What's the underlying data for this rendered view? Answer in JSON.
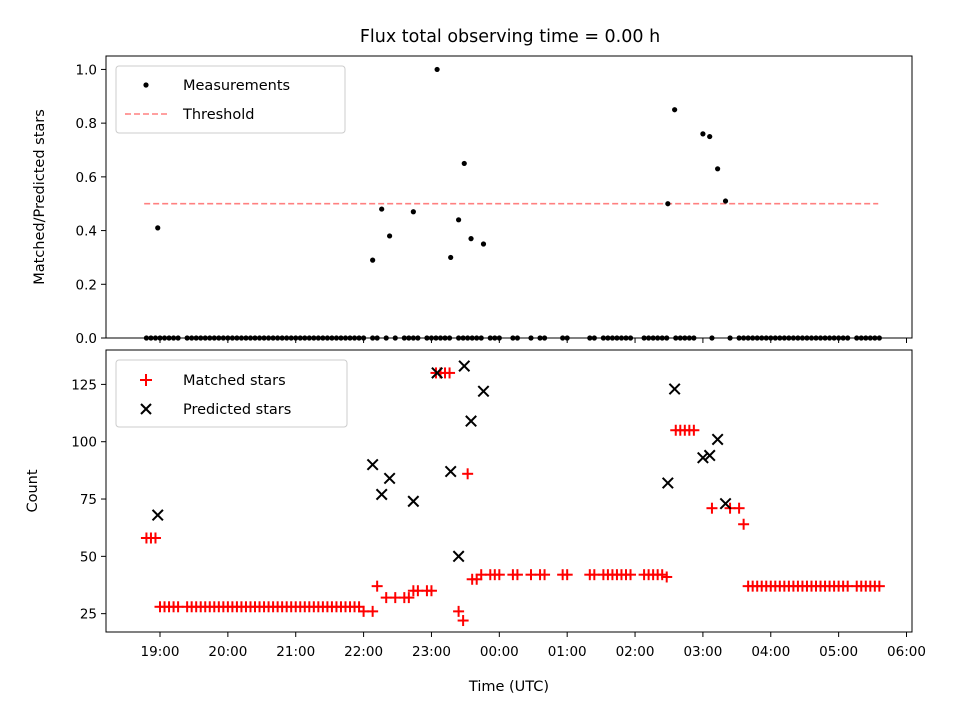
{
  "chart_data": [
    {
      "type": "scatter",
      "title": "Flux total observing time = 0.00 h",
      "xlabel": "",
      "ylabel": "Matched/Predicted stars",
      "ylim": [
        0,
        1.05
      ],
      "yticks": [
        "0.0",
        "0.2",
        "0.4",
        "0.6",
        "0.8",
        "1.0"
      ],
      "legend_position": "upper-left",
      "colors": {
        "measurements": "#000000",
        "threshold": "#ff8080"
      },
      "series": [
        {
          "name": "Measurements",
          "marker": "dot",
          "x": [
            "18:48",
            "18:52",
            "18:56",
            "19:00",
            "19:04",
            "19:08",
            "19:12",
            "19:16",
            "19:24",
            "19:28",
            "19:32",
            "19:36",
            "19:40",
            "19:44",
            "19:48",
            "19:52",
            "19:56",
            "20:00",
            "20:04",
            "20:08",
            "20:12",
            "20:16",
            "20:20",
            "20:24",
            "20:28",
            "20:32",
            "20:36",
            "20:40",
            "20:44",
            "20:48",
            "20:52",
            "20:56",
            "21:00",
            "21:04",
            "21:08",
            "21:12",
            "21:16",
            "21:20",
            "21:24",
            "21:28",
            "21:32",
            "21:36",
            "21:40",
            "21:44",
            "21:48",
            "21:52",
            "21:56",
            "22:00",
            "22:08",
            "22:12",
            "22:20",
            "22:28",
            "22:36",
            "22:40",
            "22:44",
            "22:48",
            "22:56",
            "23:00",
            "23:04",
            "23:08",
            "23:12",
            "23:16",
            "23:24",
            "23:28",
            "23:32",
            "23:36",
            "23:40",
            "23:44",
            "23:52",
            "23:56",
            "00:00",
            "00:12",
            "00:16",
            "00:28",
            "00:36",
            "00:40",
            "00:56",
            "01:00",
            "01:20",
            "01:24",
            "01:32",
            "01:36",
            "01:40",
            "01:44",
            "01:48",
            "01:52",
            "01:56",
            "02:08",
            "02:12",
            "02:16",
            "02:20",
            "02:24",
            "02:28",
            "02:36",
            "02:40",
            "02:44",
            "02:48",
            "02:52",
            "03:08",
            "03:24",
            "03:32",
            "03:36",
            "03:40",
            "03:44",
            "03:48",
            "03:52",
            "03:56",
            "04:00",
            "04:04",
            "04:08",
            "04:12",
            "04:16",
            "04:20",
            "04:24",
            "04:28",
            "04:32",
            "04:36",
            "04:40",
            "04:44",
            "04:48",
            "04:52",
            "04:56",
            "05:00",
            "05:04",
            "05:08",
            "05:16",
            "05:20",
            "05:24",
            "05:28",
            "05:32",
            "05:36",
            "18:58",
            "22:08",
            "22:16",
            "22:23",
            "22:44",
            "23:05",
            "23:17",
            "23:24",
            "23:29",
            "23:35",
            "23:46",
            "02:29",
            "02:35",
            "03:00",
            "03:06",
            "03:13",
            "03:20"
          ],
          "y": [
            0,
            0,
            0,
            0,
            0,
            0,
            0,
            0,
            0,
            0,
            0,
            0,
            0,
            0,
            0,
            0,
            0,
            0,
            0,
            0,
            0,
            0,
            0,
            0,
            0,
            0,
            0,
            0,
            0,
            0,
            0,
            0,
            0,
            0,
            0,
            0,
            0,
            0,
            0,
            0,
            0,
            0,
            0,
            0,
            0,
            0,
            0,
            0,
            0,
            0,
            0,
            0,
            0,
            0,
            0,
            0,
            0,
            0,
            0,
            0,
            0,
            0,
            0,
            0,
            0,
            0,
            0,
            0,
            0,
            0,
            0,
            0,
            0,
            0,
            0,
            0,
            0,
            0,
            0,
            0,
            0,
            0,
            0,
            0,
            0,
            0,
            0,
            0,
            0,
            0,
            0,
            0,
            0,
            0,
            0,
            0,
            0,
            0,
            0,
            0,
            0,
            0,
            0,
            0,
            0,
            0,
            0,
            0,
            0,
            0,
            0,
            0,
            0,
            0,
            0,
            0,
            0,
            0,
            0,
            0,
            0,
            0,
            0,
            0,
            0,
            0,
            0,
            0,
            0,
            0,
            0,
            0.41,
            0.29,
            0.48,
            0.38,
            0.47,
            1.0,
            0.3,
            0.44,
            0.65,
            0.37,
            0.35,
            0.5,
            0.85,
            0.76,
            0.75,
            0.63,
            0.51
          ]
        },
        {
          "name": "Threshold",
          "style": "dashed",
          "x": [
            "18:46",
            "05:35"
          ],
          "y": [
            0.5,
            0.5
          ]
        }
      ]
    },
    {
      "type": "scatter",
      "title": "",
      "xlabel": "Time (UTC)",
      "ylabel": "Count",
      "ylim": [
        17,
        140
      ],
      "yticks": [
        "25",
        "50",
        "75",
        "100",
        "125"
      ],
      "xticks": [
        "19:00",
        "20:00",
        "21:00",
        "22:00",
        "23:00",
        "00:00",
        "01:00",
        "02:00",
        "03:00",
        "04:00",
        "05:00",
        "06:00"
      ],
      "legend_position": "upper-left",
      "colors": {
        "matched": "#ff0000",
        "predicted": "#000000"
      },
      "series": [
        {
          "name": "Matched stars",
          "marker": "plus",
          "x": [
            "18:48",
            "18:52",
            "18:56",
            "19:00",
            "19:04",
            "19:08",
            "19:12",
            "19:16",
            "19:24",
            "19:28",
            "19:32",
            "19:36",
            "19:40",
            "19:44",
            "19:48",
            "19:52",
            "19:56",
            "20:00",
            "20:04",
            "20:08",
            "20:12",
            "20:16",
            "20:20",
            "20:24",
            "20:28",
            "20:32",
            "20:36",
            "20:40",
            "20:44",
            "20:48",
            "20:52",
            "20:56",
            "21:00",
            "21:04",
            "21:08",
            "21:12",
            "21:16",
            "21:20",
            "21:24",
            "21:28",
            "21:32",
            "21:36",
            "21:40",
            "21:44",
            "21:48",
            "21:52",
            "21:56",
            "22:00",
            "22:08",
            "22:12",
            "22:20",
            "22:28",
            "22:36",
            "22:40",
            "22:44",
            "22:48",
            "22:56",
            "23:00",
            "23:04",
            "23:08",
            "23:12",
            "23:16",
            "23:24",
            "23:28",
            "23:32",
            "23:36",
            "23:40",
            "23:44",
            "23:52",
            "23:56",
            "00:00",
            "00:12",
            "00:16",
            "00:28",
            "00:36",
            "00:40",
            "00:56",
            "01:00",
            "01:20",
            "01:24",
            "01:32",
            "01:36",
            "01:40",
            "01:44",
            "01:48",
            "01:52",
            "01:56",
            "02:08",
            "02:12",
            "02:16",
            "02:20",
            "02:24",
            "02:28",
            "02:36",
            "02:40",
            "02:44",
            "02:48",
            "02:52",
            "03:08",
            "03:24",
            "03:32",
            "03:36",
            "03:40",
            "03:44",
            "03:48",
            "03:52",
            "03:56",
            "04:00",
            "04:04",
            "04:08",
            "04:12",
            "04:16",
            "04:20",
            "04:24",
            "04:28",
            "04:32",
            "04:36",
            "04:40",
            "04:44",
            "04:48",
            "04:52",
            "04:56",
            "05:00",
            "05:04",
            "05:08",
            "05:16",
            "05:20",
            "05:24",
            "05:28",
            "05:32",
            "05:36"
          ],
          "y": [
            58,
            58,
            58,
            28,
            28,
            28,
            28,
            28,
            28,
            28,
            28,
            28,
            28,
            28,
            28,
            28,
            28,
            28,
            28,
            28,
            28,
            28,
            28,
            28,
            28,
            28,
            28,
            28,
            28,
            28,
            28,
            28,
            28,
            28,
            28,
            28,
            28,
            28,
            28,
            28,
            28,
            28,
            28,
            28,
            28,
            28,
            28,
            26,
            26,
            37,
            32,
            32,
            32,
            32,
            35,
            35,
            35,
            35,
            130,
            130,
            130,
            130,
            26,
            22,
            86,
            40,
            40,
            42,
            42,
            42,
            42,
            42,
            42,
            42,
            42,
            42,
            42,
            42,
            42,
            42,
            42,
            42,
            42,
            42,
            42,
            42,
            42,
            42,
            42,
            42,
            42,
            42,
            41,
            105,
            105,
            105,
            105,
            105,
            71,
            71,
            71,
            64,
            37,
            37,
            37,
            37,
            37,
            37,
            37,
            37,
            37,
            37,
            37,
            37,
            37,
            37,
            37,
            37,
            37,
            37,
            37,
            37,
            37,
            37,
            37,
            37,
            37,
            37,
            37,
            37,
            37
          ]
        },
        {
          "name": "Predicted stars",
          "marker": "x",
          "x": [
            "18:58",
            "22:08",
            "22:16",
            "22:23",
            "22:44",
            "23:05",
            "23:17",
            "23:24",
            "23:29",
            "23:35",
            "23:46",
            "02:29",
            "02:35",
            "03:00",
            "03:06",
            "03:13",
            "03:20"
          ],
          "y": [
            68,
            90,
            77,
            84,
            74,
            130,
            87,
            50,
            133,
            109,
            122,
            82,
            123,
            93,
            94,
            101,
            73
          ]
        }
      ]
    }
  ]
}
